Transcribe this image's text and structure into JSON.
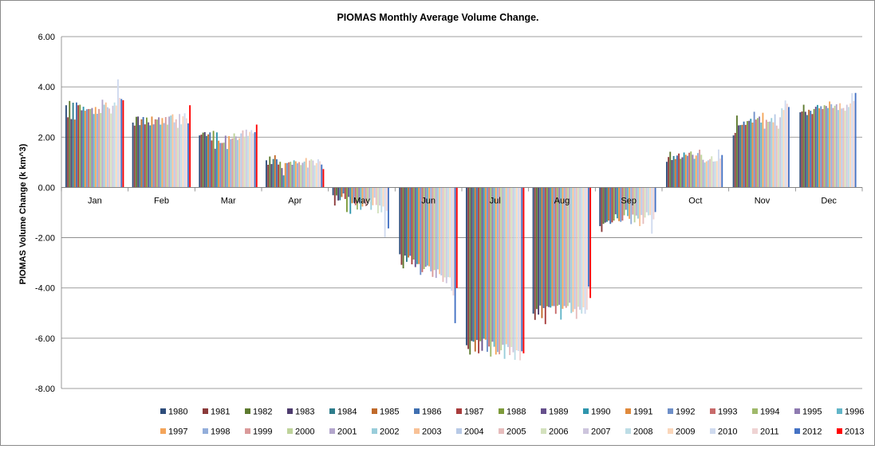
{
  "chart_data": {
    "type": "bar",
    "title": "PIOMAS Monthly Average Volume Change.",
    "xlabel": "",
    "ylabel": "PIOMAS Volume Change (k km^3)",
    "ylim": [
      -8,
      6
    ],
    "yticks": [
      "6.00",
      "4.00",
      "2.00",
      "0.00",
      "-2.00",
      "-4.00",
      "-6.00",
      "-8.00"
    ],
    "grid": true,
    "legend_position": "bottom",
    "categories": [
      "Jan",
      "Feb",
      "Mar",
      "Apr",
      "May",
      "Jun",
      "Jul",
      "Aug",
      "Sep",
      "Oct",
      "Nov",
      "Dec"
    ],
    "colors": [
      "#2E4D7B",
      "#8B3A3A",
      "#5D7A2F",
      "#4E3C6E",
      "#2E7D8C",
      "#C06A2B",
      "#3F6FB0",
      "#A83C3C",
      "#7E9B3B",
      "#66508C",
      "#2F96AD",
      "#E08A3C",
      "#6E8FC8",
      "#C86A6A",
      "#9FB96A",
      "#8E7AB0",
      "#62B5C8",
      "#F4A55A",
      "#93AEDA",
      "#DA9A9A",
      "#BED39A",
      "#B3A6CC",
      "#99CDDA",
      "#F8C196",
      "#B7C9E6",
      "#E6BCBC",
      "#D3E1BD",
      "#CDC5DD",
      "#BDDDE6",
      "#FAD6BA",
      "#CFDAEF",
      "#EFD3D3",
      "#4472C4",
      "#FF0000"
    ],
    "series": [
      {
        "name": "1980",
        "values": [
          3.27,
          2.58,
          2.07,
          1.08,
          -0.31,
          -2.66,
          -6.28,
          -5.02,
          -1.54,
          1.02,
          2.07,
          2.99
        ]
      },
      {
        "name": "1981",
        "values": [
          2.79,
          2.46,
          2.1,
          0.9,
          -0.72,
          -3.08,
          -6.43,
          -5.27,
          -1.77,
          1.21,
          2.17,
          3.02
        ]
      },
      {
        "name": "1982",
        "values": [
          3.44,
          2.81,
          2.18,
          1.23,
          -0.32,
          -3.22,
          -6.65,
          -4.84,
          -1.45,
          1.42,
          2.86,
          3.29
        ]
      },
      {
        "name": "1983",
        "values": [
          2.72,
          2.82,
          2.2,
          0.93,
          -0.52,
          -2.71,
          -6.11,
          -5.06,
          -1.4,
          1.09,
          2.47,
          3.01
        ]
      },
      {
        "name": "1984",
        "values": [
          3.37,
          2.48,
          2.05,
          1.13,
          -0.51,
          -2.96,
          -6.14,
          -4.7,
          -1.37,
          1.25,
          2.48,
          2.88
        ]
      },
      {
        "name": "1985",
        "values": [
          2.7,
          2.71,
          2.11,
          1.28,
          -0.38,
          -2.79,
          -6.53,
          -5.2,
          -1.32,
          1.13,
          2.49,
          3.09
        ]
      },
      {
        "name": "1986",
        "values": [
          3.38,
          2.8,
          2.19,
          1.12,
          -0.24,
          -2.72,
          -6.07,
          -4.8,
          -1.45,
          1.27,
          2.62,
          3.05
        ]
      },
      {
        "name": "1987",
        "values": [
          3.27,
          2.51,
          1.87,
          0.91,
          -0.46,
          -3.06,
          -6.6,
          -5.44,
          -1.39,
          1.35,
          2.49,
          2.92
        ]
      },
      {
        "name": "1988",
        "values": [
          3.29,
          2.78,
          2.25,
          1.02,
          -0.98,
          -2.87,
          -6.12,
          -4.73,
          -1.32,
          1.14,
          2.64,
          3.12
        ]
      },
      {
        "name": "1989",
        "values": [
          3.07,
          2.59,
          1.54,
          0.77,
          -0.38,
          -3.17,
          -6.5,
          -4.76,
          -1.07,
          1.2,
          2.65,
          3.21
        ]
      },
      {
        "name": "1990",
        "values": [
          3.21,
          2.47,
          2.19,
          0.48,
          -1.05,
          -3.05,
          -6.02,
          -4.78,
          -1.23,
          1.39,
          2.73,
          3.28
        ]
      },
      {
        "name": "1991",
        "values": [
          3.05,
          2.82,
          1.86,
          0.97,
          -0.63,
          -3.05,
          -6.06,
          -4.72,
          -1.34,
          1.3,
          2.58,
          3.15
        ]
      },
      {
        "name": "1992",
        "values": [
          3.11,
          2.51,
          1.77,
          0.97,
          -0.61,
          -3.48,
          -6.54,
          -4.72,
          -1.37,
          1.26,
          3.01,
          3.23
        ]
      },
      {
        "name": "1993",
        "values": [
          3.12,
          2.71,
          1.77,
          1.0,
          -0.71,
          -3.37,
          -6.33,
          -5.03,
          -1.32,
          1.38,
          2.7,
          3.12
        ]
      },
      {
        "name": "1994",
        "values": [
          3.12,
          2.7,
          1.78,
          1.02,
          -0.88,
          -3.25,
          -6.73,
          -4.71,
          -1.11,
          1.43,
          2.76,
          3.27
        ]
      },
      {
        "name": "1995",
        "values": [
          3.16,
          2.79,
          2.06,
          0.9,
          -0.59,
          -3.16,
          -6.14,
          -4.67,
          -0.89,
          1.3,
          2.82,
          3.24
        ]
      },
      {
        "name": "1996",
        "values": [
          2.92,
          2.5,
          1.53,
          1.08,
          -0.89,
          -3.11,
          -6.34,
          -5.26,
          -1.14,
          1.14,
          2.58,
          3.16
        ]
      },
      {
        "name": "1997",
        "values": [
          3.2,
          2.76,
          2.04,
          1.04,
          -0.76,
          -3.14,
          -6.65,
          -4.83,
          -1.25,
          1.27,
          2.97,
          3.42
        ]
      },
      {
        "name": "1998",
        "values": [
          2.93,
          2.56,
          1.92,
          0.96,
          -0.61,
          -3.34,
          -6.55,
          -4.72,
          -1.46,
          1.37,
          2.34,
          3.31
        ]
      },
      {
        "name": "1999",
        "values": [
          3.12,
          2.8,
          1.95,
          1.01,
          -0.75,
          -3.56,
          -6.64,
          -4.79,
          -1.08,
          1.5,
          2.69,
          3.16
        ]
      },
      {
        "name": "2000",
        "values": [
          2.96,
          2.5,
          2.15,
          0.89,
          -0.57,
          -3.29,
          -6.48,
          -4.72,
          -1.39,
          1.3,
          2.61,
          3.25
        ]
      },
      {
        "name": "2001",
        "values": [
          3.49,
          2.82,
          2.03,
          0.98,
          -0.51,
          -3.6,
          -6.26,
          -4.59,
          -1.12,
          1.1,
          2.62,
          3.31
        ]
      },
      {
        "name": "2002",
        "values": [
          3.29,
          2.86,
          1.89,
          1.03,
          -0.89,
          -3.26,
          -6.82,
          -5.0,
          -1.24,
          0.99,
          2.76,
          3.08
        ]
      },
      {
        "name": "2003",
        "values": [
          3.38,
          2.91,
          1.96,
          1.17,
          -0.71,
          -3.45,
          -6.24,
          -4.95,
          -1.54,
          1.04,
          2.59,
          3.35
        ]
      },
      {
        "name": "2004",
        "values": [
          3.19,
          2.59,
          2.15,
          0.79,
          -0.41,
          -3.5,
          -6.35,
          -4.84,
          -1.1,
          1.08,
          2.91,
          3.14
        ]
      },
      {
        "name": "2005",
        "values": [
          3.14,
          2.71,
          2.27,
          1.07,
          -0.7,
          -3.76,
          -6.67,
          -5.23,
          -1.45,
          1.13,
          2.46,
          3.16
        ]
      },
      {
        "name": "2006",
        "values": [
          2.94,
          2.37,
          2.02,
          1.12,
          -1.03,
          -3.58,
          -6.35,
          -4.75,
          -1.2,
          1.24,
          2.34,
          3.05
        ]
      },
      {
        "name": "2007",
        "values": [
          3.25,
          2.92,
          2.3,
          1.07,
          -0.72,
          -3.81,
          -6.56,
          -4.87,
          -0.99,
          1.03,
          2.79,
          3.29
        ]
      },
      {
        "name": "2008",
        "values": [
          3.38,
          2.51,
          2.05,
          0.88,
          -0.99,
          -3.57,
          -6.86,
          -5.02,
          -1.11,
          1.04,
          3.15,
          3.2
        ]
      },
      {
        "name": "2009",
        "values": [
          3.26,
          2.83,
          2.21,
          0.97,
          -0.76,
          -3.58,
          -6.48,
          -4.77,
          -1.1,
          1.05,
          3.08,
          3.34
        ]
      },
      {
        "name": "2010",
        "values": [
          4.3,
          2.95,
          2.28,
          1.12,
          -1.98,
          -4.11,
          -6.51,
          -5.03,
          -1.84,
          1.51,
          3.46,
          3.75
        ]
      },
      {
        "name": "2011",
        "values": [
          3.56,
          2.75,
          2.15,
          1.04,
          -0.93,
          -4.3,
          -6.88,
          -4.87,
          -1.27,
          1.15,
          3.33,
          3.44
        ]
      },
      {
        "name": "2012",
        "values": [
          3.52,
          2.55,
          2.2,
          0.91,
          -1.63,
          -5.4,
          -6.52,
          -3.95,
          -0.98,
          1.29,
          3.2,
          3.76
        ]
      },
      {
        "name": "2013",
        "values": [
          3.47,
          3.27,
          2.5,
          0.73,
          null,
          -4.0,
          -6.6,
          -4.4,
          null,
          null,
          null,
          null
        ]
      }
    ]
  }
}
